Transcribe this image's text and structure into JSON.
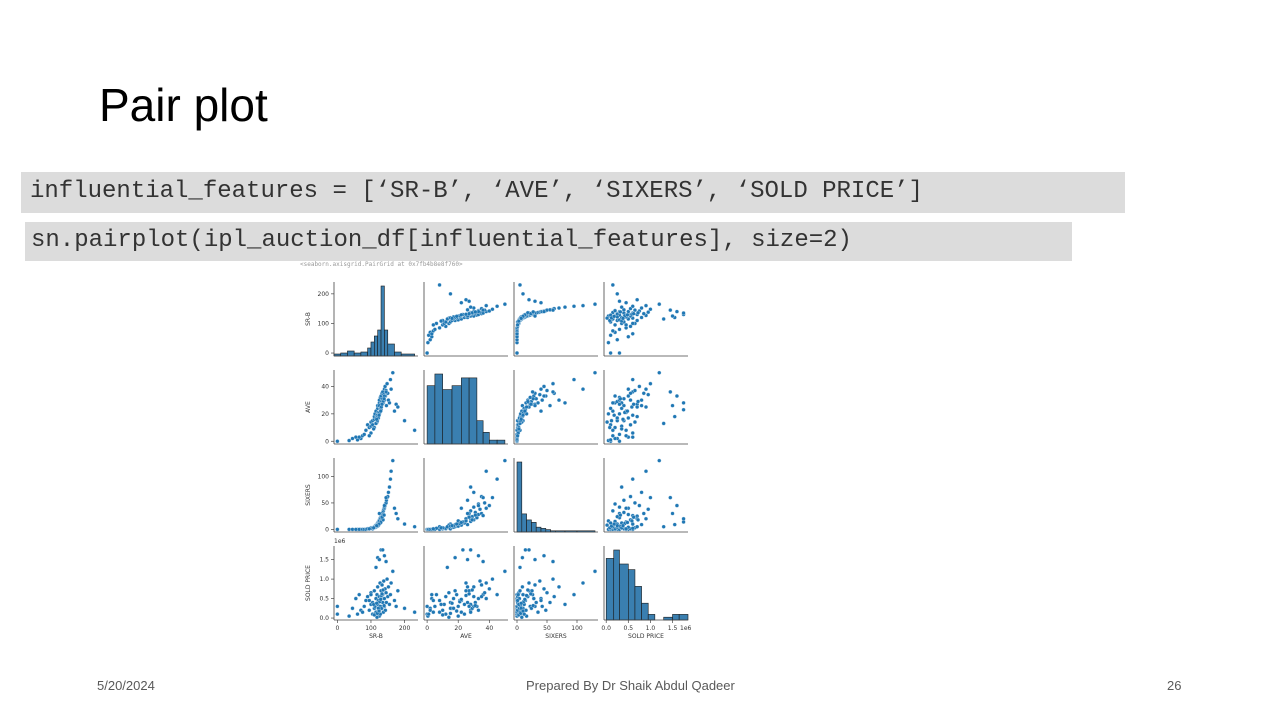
{
  "slide": {
    "title": "Pair plot",
    "code_line_1": "influential_features = [‘SR-B’, ‘AVE’, ‘SIXERS’, ‘SOLD PRICE’]",
    "code_line_2": "sn.pairplot(ipl_auction_df[influential_features], size=2)",
    "output_text": "<seaborn.axisgrid.PairGrid at 0x7fb4b8e8f760>"
  },
  "footer": {
    "date": "5/20/2024",
    "author": "Prepared By Dr Shaik Abdul Qadeer",
    "page": "26"
  },
  "colors": {
    "point": "#1f77b4",
    "bar": "#3a7fb0",
    "bar_edge": "#1a1a1a",
    "axis": "#444444"
  },
  "chart_data": {
    "type": "scatter",
    "variables": [
      "SR-B",
      "AVE",
      "SIXERS",
      "SOLD PRICE"
    ],
    "axis_labels": [
      "SR-B",
      "AVE",
      "SIXERS",
      "SOLD PRICE"
    ],
    "x_ticks": [
      [
        0,
        100,
        200
      ],
      [
        0,
        20,
        40
      ],
      [
        0,
        50,
        100
      ],
      [
        0.0,
        0.5,
        1.0,
        1.5
      ]
    ],
    "x_tick_labels": [
      [
        "0",
        "100",
        "200"
      ],
      [
        "0",
        "20",
        "40"
      ],
      [
        "0",
        "50",
        "100"
      ],
      [
        "0.0",
        "0.5",
        "1.0",
        "1.5"
      ]
    ],
    "y_ticks": [
      [
        0,
        100,
        200
      ],
      [
        0,
        20,
        40
      ],
      [
        0,
        50,
        100
      ],
      [
        0.0,
        0.5,
        1.0,
        1.5
      ]
    ],
    "y_tick_labels": [
      [
        "0",
        "100",
        "200"
      ],
      [
        "0",
        "20",
        "40"
      ],
      [
        "0",
        "50",
        "100"
      ],
      [
        "0.0",
        "0.5",
        "1.0",
        "1.5"
      ]
    ],
    "ranges": [
      [
        -10,
        240
      ],
      [
        -2,
        52
      ],
      [
        -5,
        135
      ],
      [
        -0.05,
        1.85
      ]
    ],
    "offset_label": "1e6",
    "diagonal": "histogram",
    "histograms": [
      {
        "edges": [
          -10,
          10,
          30,
          50,
          70,
          90,
          100,
          110,
          120,
          130,
          140,
          150,
          170,
          190,
          230
        ],
        "counts": [
          2,
          3,
          5,
          3,
          4,
          8,
          14,
          20,
          26,
          70,
          26,
          12,
          4,
          2
        ]
      },
      {
        "edges": [
          0,
          5,
          10,
          16,
          22,
          27,
          32,
          36,
          40,
          45,
          50
        ],
        "counts": [
          15,
          18,
          14,
          15,
          17,
          17,
          6,
          3,
          1,
          1
        ]
      },
      {
        "edges": [
          0,
          8,
          16,
          24,
          32,
          40,
          48,
          56,
          64,
          80,
          100,
          130
        ],
        "counts": [
          58,
          15,
          10,
          8,
          4,
          3,
          2,
          1,
          1,
          1,
          1
        ]
      },
      {
        "edges": [
          0.0,
          0.17,
          0.3,
          0.5,
          0.65,
          0.8,
          0.95,
          1.1,
          1.3,
          1.5,
          1.65,
          1.85
        ],
        "counts": [
          22,
          25,
          20,
          18,
          12,
          6,
          2,
          0,
          1,
          2,
          2
        ]
      }
    ],
    "records": [
      [
        0,
        0,
        0,
        0.1
      ],
      [
        0,
        0,
        0,
        0.3
      ],
      [
        35,
        0.5,
        0,
        0.05
      ],
      [
        45,
        2,
        0,
        0.25
      ],
      [
        60,
        1,
        0,
        0.1
      ],
      [
        55,
        3,
        0,
        0.5
      ],
      [
        70,
        2,
        0,
        0.2
      ],
      [
        65,
        3,
        0,
        0.6
      ],
      [
        75,
        4,
        0,
        0.15
      ],
      [
        80,
        5,
        0,
        0.3
      ],
      [
        85,
        8,
        0,
        0.45
      ],
      [
        90,
        12,
        1,
        0.55
      ],
      [
        95,
        10,
        1,
        0.2
      ],
      [
        100,
        11,
        2,
        0.35
      ],
      [
        100,
        14,
        3,
        0.65
      ],
      [
        105,
        12,
        2,
        0.1
      ],
      [
        105,
        15,
        1,
        0.4
      ],
      [
        110,
        16,
        4,
        0.25
      ],
      [
        110,
        18,
        5,
        0.7
      ],
      [
        112,
        20,
        6,
        0.3
      ],
      [
        115,
        17,
        4,
        0.5
      ],
      [
        115,
        22,
        8,
        0.15
      ],
      [
        118,
        19,
        10,
        0.6
      ],
      [
        120,
        24,
        12,
        0.35
      ],
      [
        120,
        26,
        9,
        0.8
      ],
      [
        122,
        21,
        14,
        0.45
      ],
      [
        125,
        28,
        15,
        0.2
      ],
      [
        125,
        30,
        18,
        0.55
      ],
      [
        127,
        25,
        20,
        0.9
      ],
      [
        128,
        32,
        22,
        0.3
      ],
      [
        130,
        27,
        25,
        0.7
      ],
      [
        130,
        33,
        28,
        0.5
      ],
      [
        132,
        29,
        24,
        0.25
      ],
      [
        133,
        35,
        30,
        0.85
      ],
      [
        135,
        31,
        32,
        0.4
      ],
      [
        135,
        36,
        26,
        0.6
      ],
      [
        137,
        28,
        35,
        0.15
      ],
      [
        138,
        34,
        38,
        0.95
      ],
      [
        140,
        38,
        40,
        0.5
      ],
      [
        140,
        30,
        42,
        0.3
      ],
      [
        142,
        40,
        45,
        0.75
      ],
      [
        143,
        33,
        48,
        0.2
      ],
      [
        145,
        37,
        50,
        0.65
      ],
      [
        146,
        26,
        55,
        0.4
      ],
      [
        148,
        42,
        60,
        1.0
      ],
      [
        150,
        35,
        62,
        0.55
      ],
      [
        152,
        30,
        70,
        0.8
      ],
      [
        155,
        28,
        80,
        0.35
      ],
      [
        158,
        45,
        95,
        0.6
      ],
      [
        160,
        38,
        110,
        0.9
      ],
      [
        165,
        50,
        130,
        1.2
      ],
      [
        170,
        22,
        40,
        0.45
      ],
      [
        175,
        27,
        30,
        0.3
      ],
      [
        180,
        25,
        20,
        0.7
      ],
      [
        200,
        15,
        10,
        0.25
      ],
      [
        230,
        8,
        5,
        0.15
      ],
      [
        125,
        20,
        16,
        0.05
      ],
      [
        118,
        14,
        8,
        0.02
      ],
      [
        128,
        24,
        12,
        0.1
      ],
      [
        110,
        10,
        3,
        0.08
      ],
      [
        115,
        13,
        5,
        1.3
      ],
      [
        120,
        18,
        9,
        1.55
      ],
      [
        130,
        23,
        14,
        1.75
      ],
      [
        135,
        28,
        20,
        1.75
      ],
      [
        140,
        33,
        45,
        1.6
      ],
      [
        145,
        36,
        60,
        1.45
      ],
      [
        125,
        26,
        30,
        1.5
      ],
      [
        100,
        6,
        2,
        0.6
      ],
      [
        95,
        4,
        1,
        0.45
      ],
      [
        108,
        9,
        3,
        0.35
      ],
      [
        122,
        17,
        7,
        0.25
      ],
      [
        126,
        21,
        11,
        0.42
      ],
      [
        119,
        15,
        6,
        0.12
      ],
      [
        131,
        25,
        16,
        0.58
      ],
      [
        136,
        29,
        18,
        0.72
      ],
      [
        129,
        22,
        13,
        0.48
      ],
      [
        124,
        19,
        10,
        0.18
      ],
      [
        117,
        16,
        7,
        0.38
      ],
      [
        133,
        27,
        23,
        0.62
      ],
      [
        139,
        31,
        27,
        0.32
      ]
    ]
  }
}
